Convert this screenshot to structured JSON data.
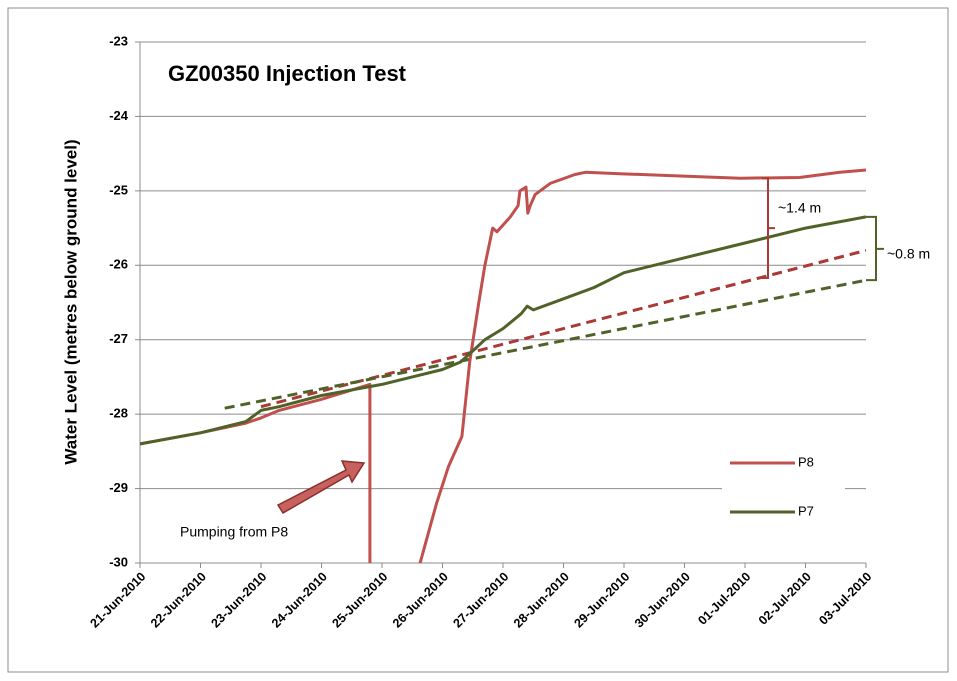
{
  "chart_data": {
    "type": "line",
    "title": "GZ00350 Injection Test",
    "ylabel": "Water Level (metres below ground level)",
    "xlim": [
      0,
      12
    ],
    "xticks": [
      {
        "value": 0,
        "label": "21-Jun-2010"
      },
      {
        "value": 1,
        "label": "22-Jun-2010"
      },
      {
        "value": 2,
        "label": "23-Jun-2010"
      },
      {
        "value": 3,
        "label": "24-Jun-2010"
      },
      {
        "value": 4,
        "label": "25-Jun-2010"
      },
      {
        "value": 5,
        "label": "26-Jun-2010"
      },
      {
        "value": 6,
        "label": "27-Jun-2010"
      },
      {
        "value": 7,
        "label": "28-Jun-2010"
      },
      {
        "value": 8,
        "label": "29-Jun-2010"
      },
      {
        "value": 9,
        "label": "30-Jun-2010"
      },
      {
        "value": 10,
        "label": "01-Jul-2010"
      },
      {
        "value": 11,
        "label": "02-Jul-2010"
      },
      {
        "value": 12,
        "label": "03-Jul-2010"
      }
    ],
    "ylim": [
      -30,
      -23
    ],
    "yticks": [
      -23,
      -24,
      -25,
      -26,
      -27,
      -28,
      -29,
      -30
    ],
    "grid": true,
    "legend": "lower right",
    "series": [
      {
        "name": "P8",
        "color": "#c0504d",
        "x": [
          0,
          1,
          1.75,
          2.0,
          2.3,
          3,
          3.8,
          3.8,
          4.63,
          4.9,
          5.1,
          5.32,
          5.45,
          5.6,
          5.7,
          5.83,
          5.9,
          6.12,
          6.25,
          6.28,
          6.38,
          6.41,
          6.45,
          6.53,
          6.78,
          7.19,
          7.36,
          7.93,
          8.93,
          9.92,
          10.9,
          11.57,
          12
        ],
        "values": [
          -28.4,
          -28.25,
          -28.12,
          -28.05,
          -27.95,
          -27.8,
          -27.6,
          -31,
          -30,
          -29.2,
          -28.7,
          -28.3,
          -27.3,
          -26.5,
          -26,
          -25.5,
          -25.55,
          -25.35,
          -25.2,
          -25.0,
          -24.95,
          -25.3,
          -25.2,
          -25.05,
          -24.9,
          -24.78,
          -24.75,
          -24.77,
          -24.8,
          -24.83,
          -24.82,
          -24.75,
          -24.72
        ]
      },
      {
        "name": "P7",
        "color": "#4f6228",
        "x": [
          0,
          1,
          1.5,
          1.75,
          2.0,
          2.3,
          3,
          4,
          4.5,
          5.0,
          5.3,
          5.5,
          5.7,
          6.0,
          6.3,
          6.4,
          6.5,
          7,
          7.5,
          8,
          9,
          10,
          11,
          12
        ],
        "values": [
          -28.4,
          -28.25,
          -28.15,
          -28.1,
          -27.95,
          -27.9,
          -27.75,
          -27.6,
          -27.5,
          -27.4,
          -27.3,
          -27.15,
          -27.0,
          -26.85,
          -26.65,
          -26.55,
          -26.6,
          -26.45,
          -26.3,
          -26.1,
          -25.9,
          -25.7,
          -25.5,
          -25.35
        ]
      }
    ],
    "trend_lines": [
      {
        "color": "#a93a36",
        "x": [
          2.0,
          12
        ],
        "values": [
          -27.9,
          -25.8
        ]
      },
      {
        "color": "#4f6228",
        "x": [
          1.4,
          12
        ],
        "values": [
          -27.92,
          -26.2
        ]
      }
    ],
    "annotations": [
      "~1.4 m",
      "~0.8 m",
      "Pumping from P8"
    ]
  }
}
